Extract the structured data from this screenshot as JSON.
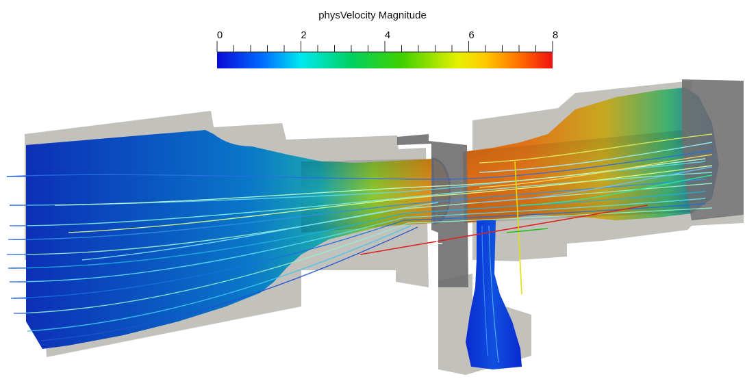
{
  "colorbar": {
    "title": "physVelocity Magnitude",
    "range": [
      0,
      8
    ],
    "major_ticks": [
      "0",
      "2",
      "4",
      "6",
      "8"
    ],
    "minor_ticks_per_interval": 5,
    "colormap": [
      "#0a0ad8",
      "#0080ff",
      "#00f0f0",
      "#00d060",
      "#30d000",
      "#d8f000",
      "#ffd000",
      "#ff8000",
      "#f01010"
    ]
  },
  "scene": {
    "background": "#ffffff",
    "domain_outline_color": "#c3c1bc",
    "slice_plane_color": "#6e6e6e",
    "axes_colors": {
      "x": "#dd2020",
      "y": "#e0e000",
      "z": "#20c020"
    }
  }
}
